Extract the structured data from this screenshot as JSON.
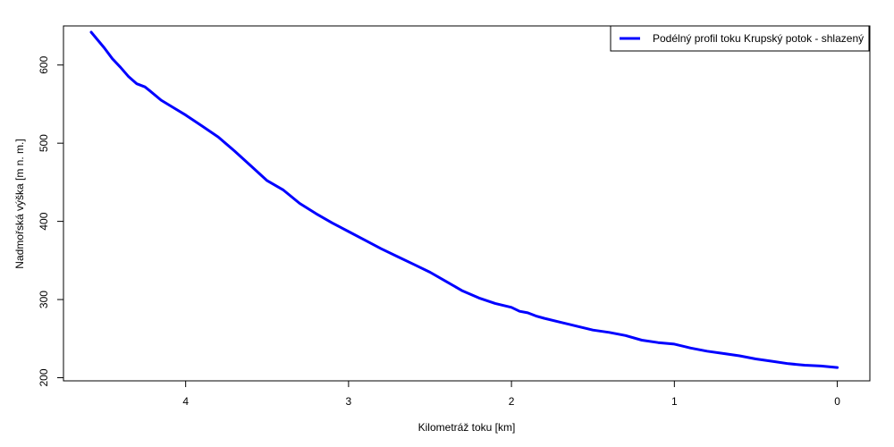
{
  "chart_data": {
    "type": "line",
    "title": "",
    "xlabel": "Kilometráž toku [km]",
    "ylabel": "Nadmořská výška [m n. m.]",
    "x_reversed": true,
    "xlim": [
      4.75,
      -0.2
    ],
    "ylim": [
      196,
      650
    ],
    "x_ticks": [
      4,
      3,
      2,
      1,
      0
    ],
    "x_tick_labels": [
      "4",
      "3",
      "2",
      "1",
      "0"
    ],
    "y_ticks": [
      200,
      300,
      400,
      500,
      600
    ],
    "y_tick_labels": [
      "200",
      "300",
      "400",
      "500",
      "600"
    ],
    "grid": false,
    "legend_position": "top-right",
    "series": [
      {
        "name": "Podélný profil toku Krupský potok - shlazený",
        "color": "#0000ff",
        "x": [
          4.58,
          4.5,
          4.45,
          4.4,
          4.35,
          4.3,
          4.25,
          4.22,
          4.15,
          4.08,
          4.0,
          3.9,
          3.8,
          3.7,
          3.6,
          3.5,
          3.4,
          3.3,
          3.2,
          3.1,
          3.0,
          2.9,
          2.8,
          2.7,
          2.6,
          2.5,
          2.4,
          2.3,
          2.2,
          2.1,
          2.0,
          1.95,
          1.9,
          1.85,
          1.8,
          1.7,
          1.6,
          1.5,
          1.4,
          1.3,
          1.2,
          1.1,
          1.0,
          0.9,
          0.8,
          0.7,
          0.6,
          0.5,
          0.4,
          0.3,
          0.2,
          0.1,
          0.0
        ],
        "y": [
          642,
          622,
          608,
          597,
          585,
          576,
          572,
          567,
          555,
          546,
          536,
          522,
          508,
          490,
          471,
          452,
          440,
          423,
          410,
          398,
          387,
          376,
          365,
          355,
          345,
          335,
          323,
          311,
          302,
          295,
          290,
          285,
          283,
          279,
          276,
          271,
          266,
          261,
          258,
          254,
          248,
          245,
          243,
          238,
          234,
          231,
          228,
          224,
          221,
          218,
          216,
          215,
          213
        ]
      }
    ]
  }
}
